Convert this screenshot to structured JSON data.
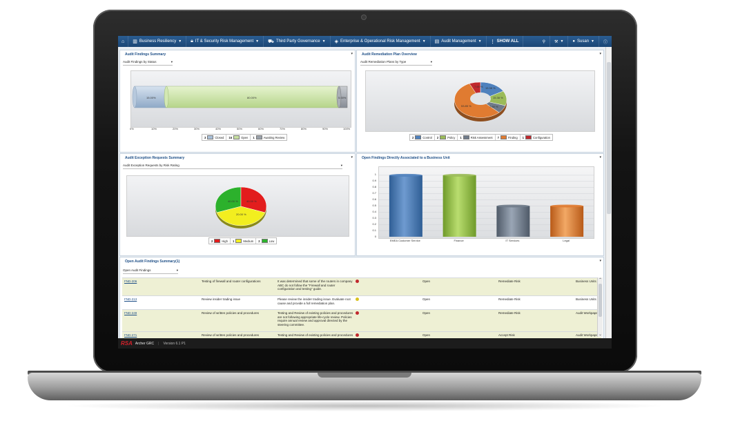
{
  "nav": {
    "items": [
      {
        "label": "Business Resiliency",
        "icon": "building-icon"
      },
      {
        "label": "IT & Security Risk Management",
        "icon": "lock-icon"
      },
      {
        "label": "Third Party Governance",
        "icon": "truck-icon"
      },
      {
        "label": "Enterprise & Operational Risk Management",
        "icon": "diamond-icon"
      },
      {
        "label": "Audit Management",
        "icon": "clipboard-icon"
      }
    ],
    "show_all": "SHOW ALL",
    "user": "Susan"
  },
  "audit_findings": {
    "title": "Audit Findings Summary",
    "selector": "Audit Findings by Status",
    "bar_labels": [
      "15.00%",
      "80.00%",
      "5.00%"
    ],
    "ticks": [
      "0%",
      "10%",
      "20%",
      "30%",
      "40%",
      "50%",
      "60%",
      "70%",
      "80%",
      "90%",
      "100%"
    ],
    "legend": [
      {
        "count": "3",
        "label": "Closed",
        "color": "#a8bfd8"
      },
      {
        "count": "16",
        "label": "Open",
        "color": "#c7e0a0"
      },
      {
        "count": "1",
        "label": "Awaiting Review",
        "color": "#9aa1ab"
      }
    ]
  },
  "remediation": {
    "title": "Audit Remediation Plan Overview",
    "selector": "Audit Remediation Plans by Type",
    "slice_labels": [
      "15.38 %",
      "15.38 %",
      "7.69 %",
      "53.85 %",
      "7.69 %"
    ],
    "legend": [
      {
        "count": "2",
        "label": "Control",
        "color": "#4f81bd"
      },
      {
        "count": "2",
        "label": "Policy",
        "color": "#9bbb59"
      },
      {
        "count": "1",
        "label": "Risk Assessment",
        "color": "#6f7b8a"
      },
      {
        "count": "7",
        "label": "Finding",
        "color": "#e07b31"
      },
      {
        "count": "1",
        "label": "Configuration",
        "color": "#c0282d"
      }
    ]
  },
  "exceptions": {
    "title": "Audit Exception Requests Summary",
    "selector": "Audit Exception Requests by Risk Rating",
    "slice_labels": [
      "40.00 %",
      "40.00 %",
      "20.00 %"
    ],
    "legend": [
      {
        "count": "2",
        "label": "High",
        "color": "#e21d1d"
      },
      {
        "count": "1",
        "label": "Medium",
        "color": "#f2ee1f"
      },
      {
        "count": "2",
        "label": "Low",
        "color": "#2cb12c"
      }
    ]
  },
  "business_unit": {
    "title": "Open Findings Directly Associated to a Business Unit",
    "yticks": [
      "0",
      "0.1",
      "0.2",
      "0.3",
      "0.4",
      "0.5",
      "0.6",
      "0.7",
      "0.8",
      "0.9",
      "1"
    ],
    "categories": [
      "EMEA Customer Service",
      "Finance",
      "IT Services",
      "Legal"
    ]
  },
  "chart_data": {
    "type": "bar",
    "categories": [
      "EMEA Customer Service",
      "Finance",
      "IT Services",
      "Legal"
    ],
    "values": [
      1,
      1,
      0.5,
      0.5
    ],
    "ylim": [
      0,
      1.1
    ],
    "colors": [
      "#4f81bd",
      "#9bbb59",
      "#6f7b8a",
      "#e07b31"
    ]
  },
  "open_findings": {
    "title": "Open Audit Findings Summary(1)",
    "selector": "Open Audit Findings",
    "rows": [
      {
        "id": "FND-206",
        "title": "Testing of firewall and router configurations",
        "desc": "It was determined that some of the routers in company ABC do not follow the \"Firewall and router configuration and testing\" guide.",
        "status": "Open",
        "response": "Remediate Risk",
        "extra": "Business Units",
        "dot": "#c0282d"
      },
      {
        "id": "FND-213",
        "title": "Review insider trading issue",
        "desc": "Please review the insider trading issue. Evaluate root cause and provide a full remediation plan.",
        "status": "Open",
        "response": "Remediate Risk",
        "extra": "Business Units",
        "dot": "#d9c21f"
      },
      {
        "id": "FND-249",
        "title": "Review of written policies and procedures",
        "desc": "Testing and Review of existing policies and procedures are not following appropriate life-cycle review. Policies require annual review and approval directed by the steering committee.",
        "status": "Open",
        "response": "Remediate Risk",
        "extra": "Audit Workpaper",
        "dot": "#c0282d"
      },
      {
        "id": "FND-271",
        "title": "Review of written policies and procedures",
        "desc": "Testing and Review of existing policies and procedures",
        "status": "Open",
        "response": "Accept Risk",
        "extra": "Audit Workpaper",
        "dot": "#c0282d"
      }
    ]
  },
  "footer": {
    "brand": "RSA",
    "product": "Archer GRC",
    "version": "Version 6.1 P1"
  }
}
